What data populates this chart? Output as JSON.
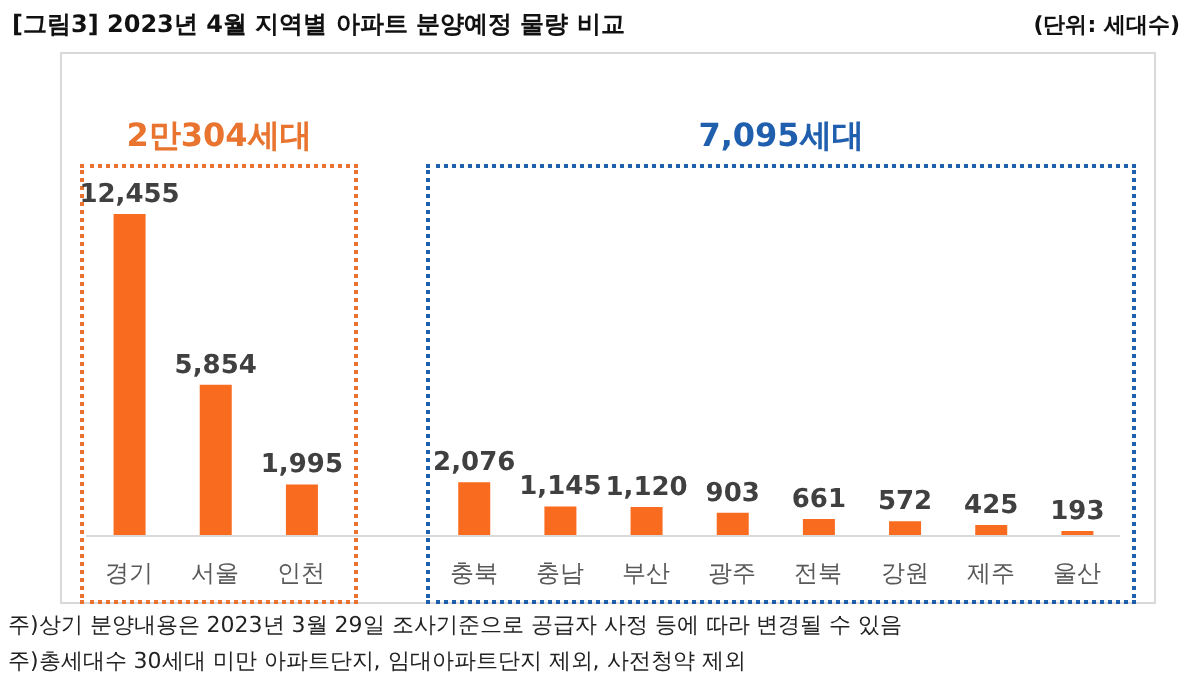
{
  "chart_data": {
    "type": "bar",
    "title": "[그림3] 2023년 4월 지역별 아파트 분양예정 물량 비교",
    "categories": [
      "경기",
      "서울",
      "인천",
      null,
      "충북",
      "충남",
      "부산",
      "광주",
      "전북",
      "강원",
      "제주",
      "울산"
    ],
    "values": [
      12455,
      5854,
      1995,
      null,
      2076,
      1145,
      1120,
      903,
      661,
      572,
      425,
      193
    ],
    "value_labels": [
      "12,455",
      "5,854",
      "1,995",
      null,
      "2,076",
      "1,145",
      "1,120",
      "903",
      "661",
      "572",
      "425",
      "193"
    ],
    "color": "#f96b1e",
    "annotations": [
      "(단위: 세대수)",
      "2만304세대",
      "7,095세대",
      "주)상기 분양내용은 2023년 3월 29일 조사기준으로 공급자 사정 등에 따라 변경될 수 있음",
      "주)총세대수 30세대 미만 아파트단지, 임대아파트단지 제외, 사전청약 제외"
    ]
  }
}
